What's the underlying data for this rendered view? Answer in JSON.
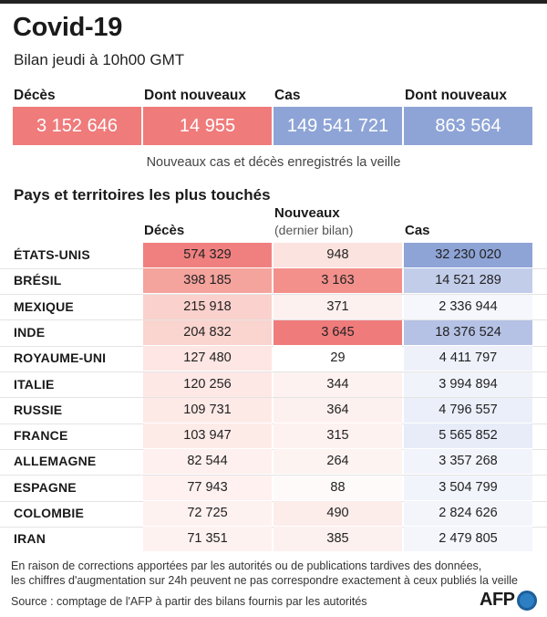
{
  "header": {
    "title": "Covid-19",
    "subtitle": "Bilan jeudi à 10h00 GMT"
  },
  "summary": {
    "deaths_label": "Décès",
    "deaths_value": "3 152 646",
    "deaths_new_label": "Dont nouveaux",
    "deaths_new_value": "14 955",
    "cases_label": "Cas",
    "cases_value": "149 541 721",
    "cases_new_label": "Dont nouveaux",
    "cases_new_value": "863 564",
    "note": "Nouveaux cas et décès enregistrés la veille",
    "deaths_color": "#ef7b7b",
    "cases_color": "#8ea4d6"
  },
  "table": {
    "title": "Pays et territoires les plus touchés",
    "col_deaths": "Décès",
    "col_new": "Nouveaux",
    "col_new_sub": "(dernier bilan)",
    "col_cases": "Cas",
    "rows": [
      {
        "country": "ÉTATS-UNIS",
        "deaths": "574 329",
        "new": "948",
        "cases": "32 230 020",
        "c_deaths": "#f08080",
        "c_new": "#fbe3df",
        "c_cases": "#8ea4d6"
      },
      {
        "country": "BRÉSIL",
        "deaths": "398 185",
        "new": "3 163",
        "cases": "14 521 289",
        "c_deaths": "#f5a39d",
        "c_new": "#f3908b",
        "c_cases": "#c2cdea"
      },
      {
        "country": "MEXIQUE",
        "deaths": "215 918",
        "new": "371",
        "cases": "2 336 944",
        "c_deaths": "#fad1cc",
        "c_new": "#fdf1ef",
        "c_cases": "#f5f7fc"
      },
      {
        "country": "INDE",
        "deaths": "204 832",
        "new": "3 645",
        "cases": "18 376 524",
        "c_deaths": "#fad4cf",
        "c_new": "#ef7b7b",
        "c_cases": "#b5c2e5"
      },
      {
        "country": "ROYAUME-UNI",
        "deaths": "127 480",
        "new": "29",
        "cases": "4 411 797",
        "c_deaths": "#fde6e3",
        "c_new": "#ffffff",
        "c_cases": "#eef1fa"
      },
      {
        "country": "ITALIE",
        "deaths": "120 256",
        "new": "344",
        "cases": "3 994 894",
        "c_deaths": "#fde8e5",
        "c_new": "#fdf2f0",
        "c_cases": "#f0f3fa"
      },
      {
        "country": "RUSSIE",
        "deaths": "109 731",
        "new": "364",
        "cases": "4 796 557",
        "c_deaths": "#fdeae7",
        "c_new": "#fdf1ef",
        "c_cases": "#ebeff9"
      },
      {
        "country": "FRANCE",
        "deaths": "103 947",
        "new": "315",
        "cases": "5 565 852",
        "c_deaths": "#fdebe8",
        "c_new": "#fdf2f0",
        "c_cases": "#e7ecf8"
      },
      {
        "country": "ALLEMAGNE",
        "deaths": "82 544",
        "new": "264",
        "cases": "3 357 268",
        "c_deaths": "#fef0ee",
        "c_new": "#fdf3f1",
        "c_cases": "#f2f4fb"
      },
      {
        "country": "ESPAGNE",
        "deaths": "77 943",
        "new": "88",
        "cases": "3 504 799",
        "c_deaths": "#fef1ef",
        "c_new": "#fffafa",
        "c_cases": "#f1f4fb"
      },
      {
        "country": "COLOMBIE",
        "deaths": "72 725",
        "new": "490",
        "cases": "2 824 626",
        "c_deaths": "#fef2f0",
        "c_new": "#fcedea",
        "c_cases": "#f3f5fb"
      },
      {
        "country": "IRAN",
        "deaths": "71 351",
        "new": "385",
        "cases": "2 479 805",
        "c_deaths": "#fef2f1",
        "c_new": "#fdf1ef",
        "c_cases": "#f4f6fc"
      }
    ]
  },
  "footer": {
    "line1": "En raison de corrections apportées par les autorités ou de publications tardives des données,",
    "line2": "les chiffres d'augmentation sur 24h peuvent ne pas correspondre exactement à ceux publiés la veille",
    "source": "Source : comptage de l'AFP à partir des bilans fournis par les autorités",
    "logo": "AFP",
    "logo_icon": "afp-globe-icon"
  }
}
